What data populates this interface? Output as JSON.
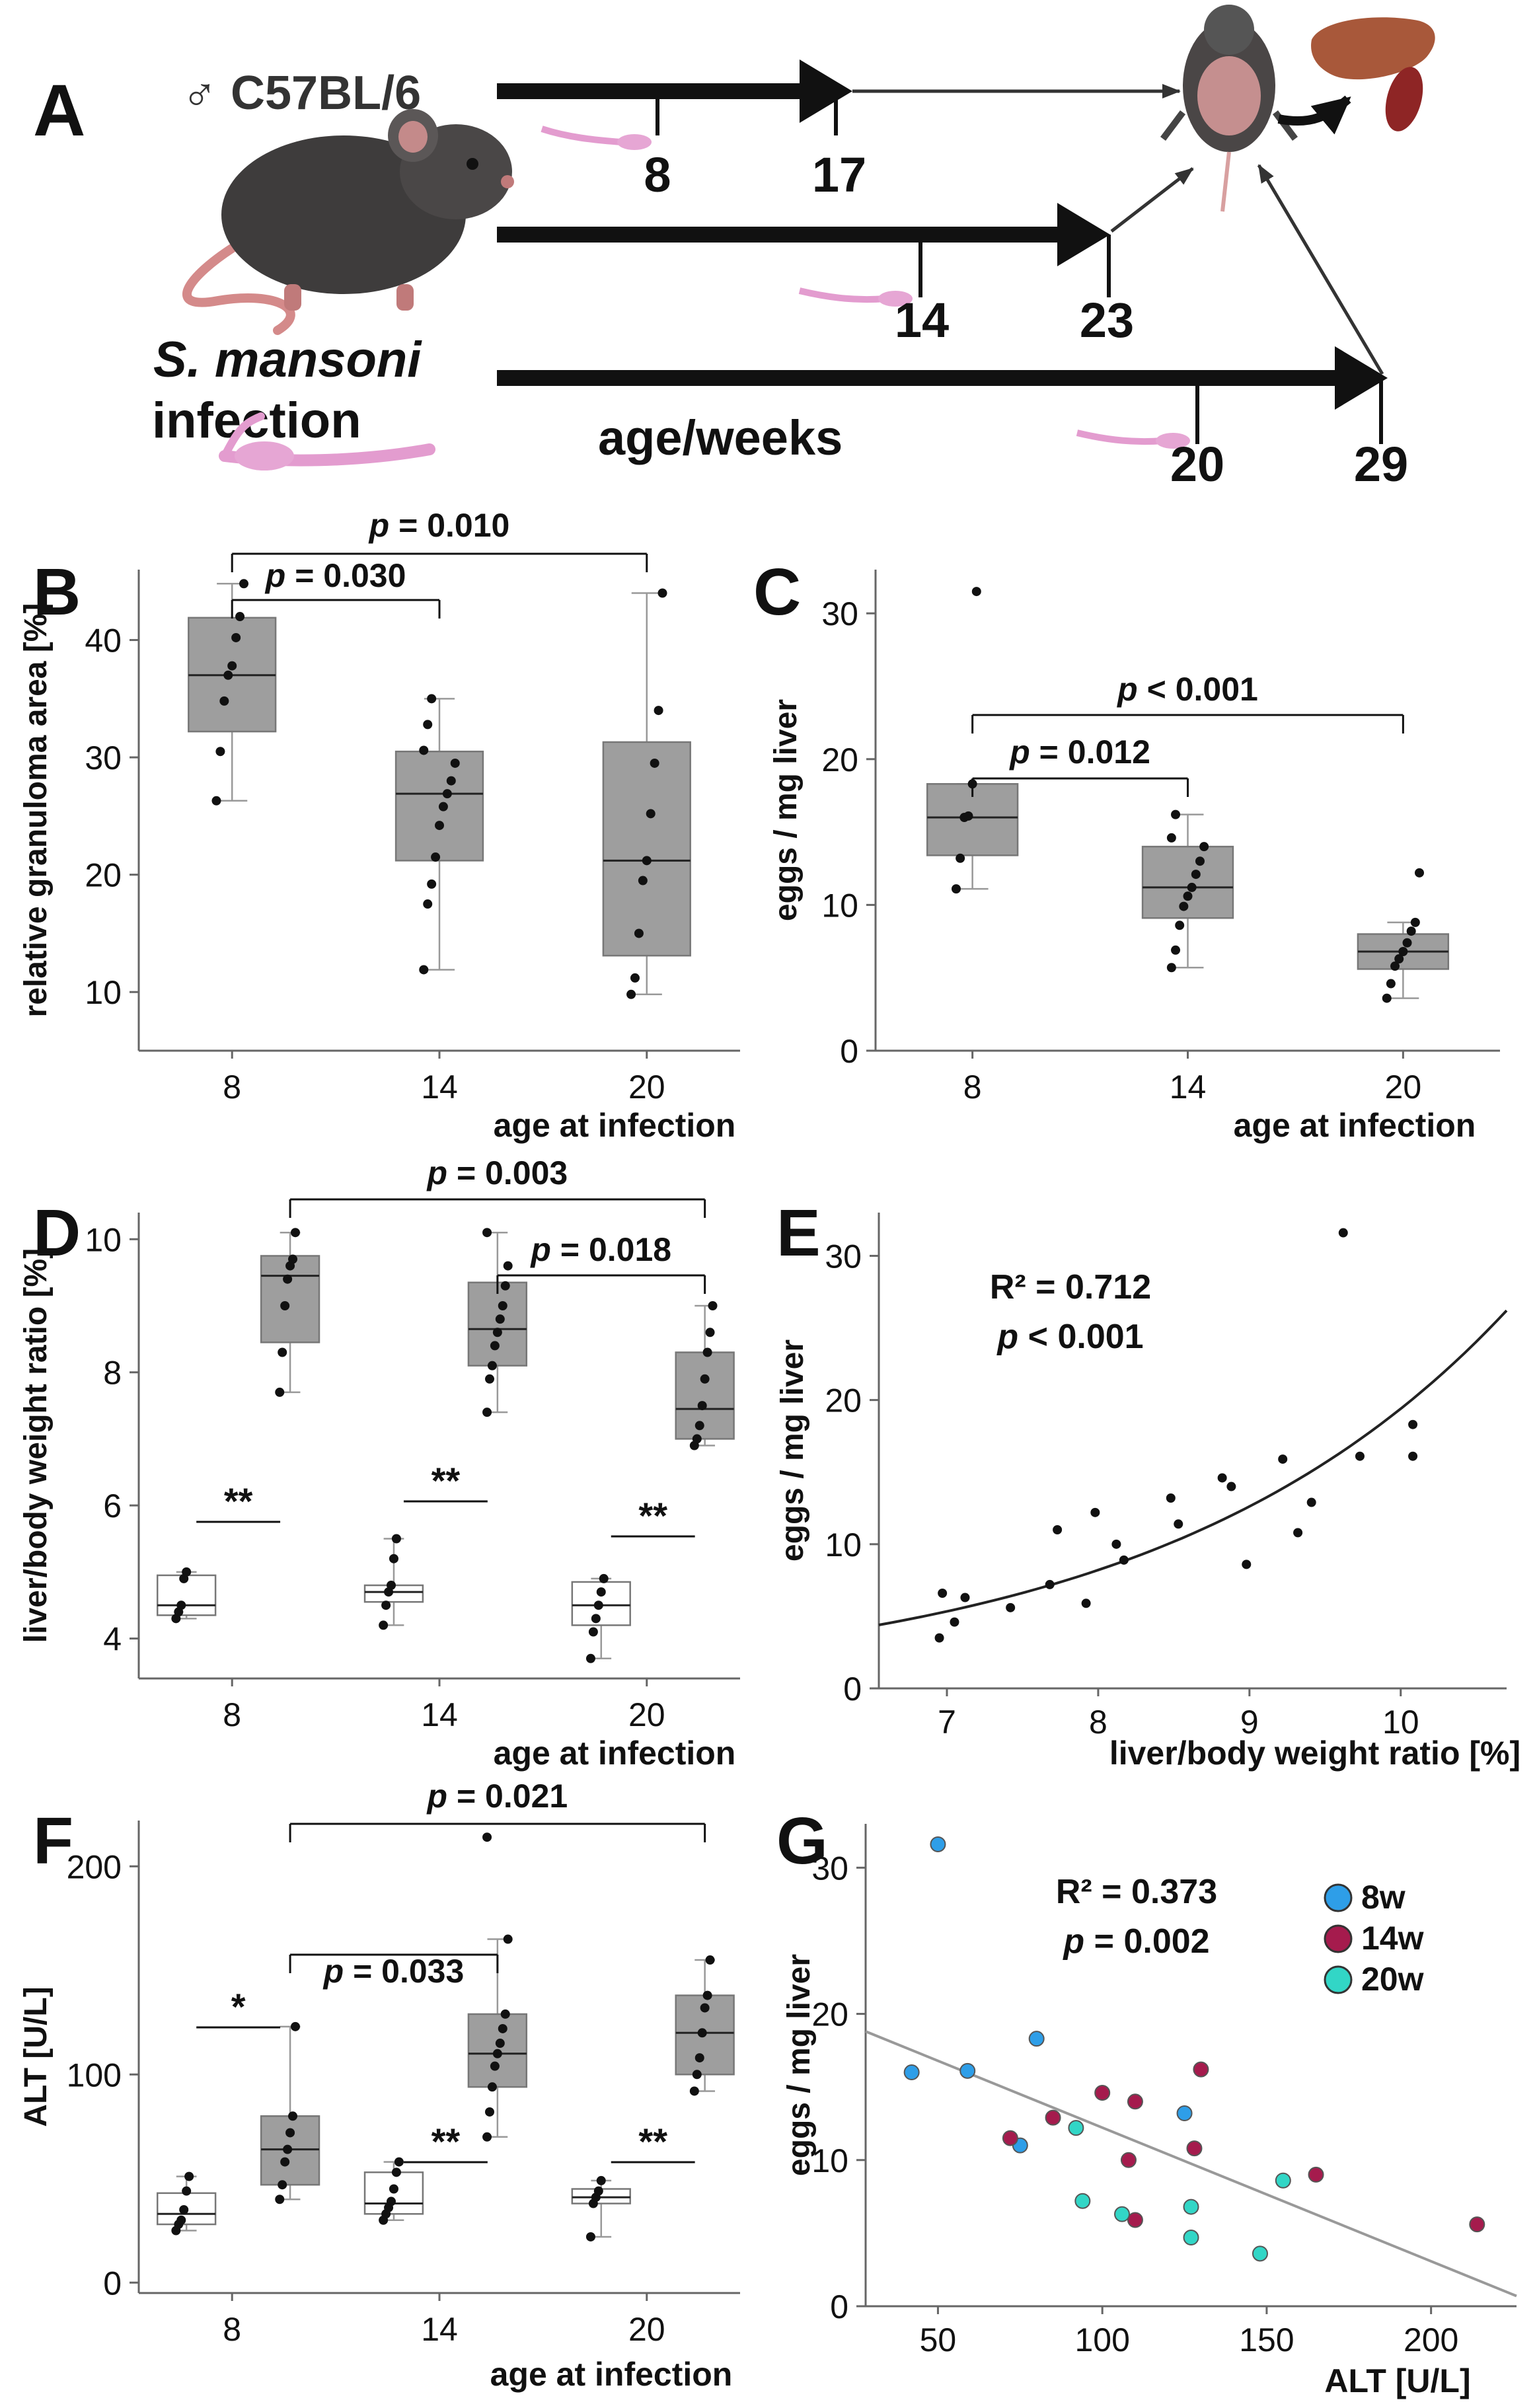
{
  "panel_a": {
    "label": "A",
    "strain": "♂ C57BL/6",
    "infection_line1": "S. mansoni",
    "infection_line2": "infection",
    "age_label": "age/weeks",
    "timelines": [
      {
        "infection": "8",
        "end": "17"
      },
      {
        "infection": "14",
        "end": "23"
      },
      {
        "infection": "20",
        "end": "29"
      }
    ]
  },
  "chart_data": [
    {
      "id": "B",
      "type": "box",
      "ylabel": "relative granuloma area [%]",
      "xlabel": "age at infection",
      "categories": [
        "8",
        "14",
        "20"
      ],
      "ylim": [
        5,
        46
      ],
      "yticks": [
        10,
        20,
        30,
        40
      ],
      "boxes": [
        {
          "cat": "8",
          "min": 26.3,
          "q1": 32.2,
          "median": 37,
          "q3": 41.9,
          "max": 44.8,
          "fill": "#9e9e9e",
          "points": [
            26.3,
            30.5,
            34.8,
            37,
            37.8,
            40.2,
            42,
            44.8
          ]
        },
        {
          "cat": "14",
          "min": 11.9,
          "q1": 21.2,
          "median": 26.9,
          "q3": 30.5,
          "max": 35,
          "fill": "#9e9e9e",
          "points": [
            11.9,
            17.5,
            19.2,
            21.5,
            24.2,
            25.8,
            26.9,
            28,
            29.5,
            30.6,
            32.8,
            35
          ]
        },
        {
          "cat": "20",
          "min": 9.8,
          "q1": 13.1,
          "median": 21.2,
          "q3": 31.3,
          "max": 44,
          "fill": "#9e9e9e",
          "points": [
            9.8,
            11.2,
            15,
            19.5,
            21.2,
            25.2,
            29.5,
            34,
            44
          ]
        }
      ],
      "annotations": [
        {
          "text": "p = 0.010",
          "from": "8",
          "to": "20"
        },
        {
          "text": "p = 0.030",
          "from": "8",
          "to": "14"
        }
      ]
    },
    {
      "id": "C",
      "type": "box",
      "ylabel": "eggs / mg liver",
      "xlabel": "age at infection",
      "categories": [
        "8",
        "14",
        "20"
      ],
      "ylim": [
        0,
        33
      ],
      "yticks": [
        0,
        10,
        20,
        30
      ],
      "boxes": [
        {
          "cat": "8",
          "min": 11.1,
          "q1": 13.4,
          "median": 16,
          "q3": 18.3,
          "max": 18.3,
          "fill": "#9e9e9e",
          "points": [
            11.1,
            13.2,
            16,
            16.1,
            18.3,
            31.5
          ]
        },
        {
          "cat": "14",
          "min": 5.7,
          "q1": 9.1,
          "median": 11.2,
          "q3": 14,
          "max": 16.2,
          "fill": "#9e9e9e",
          "points": [
            5.7,
            6.9,
            8.6,
            9.9,
            10.6,
            11.2,
            12.1,
            13,
            14,
            14.6,
            16.2
          ]
        },
        {
          "cat": "20",
          "min": 3.6,
          "q1": 5.6,
          "median": 6.8,
          "q3": 8,
          "max": 8.8,
          "fill": "#9e9e9e",
          "points": [
            3.6,
            4.6,
            5.8,
            6.3,
            6.8,
            7.4,
            8.2,
            8.8,
            12.2
          ]
        }
      ],
      "annotations": [
        {
          "text": "p < 0.001",
          "from": "8",
          "to": "20"
        },
        {
          "text": "p = 0.012",
          "from": "8",
          "to": "14"
        }
      ]
    },
    {
      "id": "D",
      "type": "box",
      "ylabel": "liver/body weight ratio  [%]",
      "xlabel": "age at infection",
      "categories": [
        "8",
        "14",
        "20"
      ],
      "ylim": [
        3.4,
        10.4
      ],
      "yticks": [
        4,
        6,
        8,
        10
      ],
      "boxes": [
        {
          "cat": "8",
          "pos": -0.22,
          "min": 4.3,
          "q1": 4.35,
          "median": 4.5,
          "q3": 4.95,
          "max": 5,
          "fill": "#ffffff",
          "points": [
            4.3,
            4.4,
            4.5,
            4.9,
            5
          ]
        },
        {
          "cat": "8",
          "pos": 0.28,
          "min": 7.7,
          "q1": 8.45,
          "median": 9.45,
          "q3": 9.75,
          "max": 10.1,
          "fill": "#9e9e9e",
          "points": [
            7.7,
            8.3,
            9,
            9.4,
            9.6,
            9.7,
            10.1
          ]
        },
        {
          "cat": "14",
          "pos": -0.22,
          "min": 4.2,
          "q1": 4.55,
          "median": 4.7,
          "q3": 4.8,
          "max": 5.5,
          "fill": "#ffffff",
          "points": [
            4.2,
            4.5,
            4.7,
            4.8,
            5.2,
            5.5
          ]
        },
        {
          "cat": "14",
          "pos": 0.28,
          "min": 7.4,
          "q1": 8.1,
          "median": 8.65,
          "q3": 9.35,
          "max": 10.1,
          "fill": "#9e9e9e",
          "points": [
            7.4,
            7.9,
            8.1,
            8.4,
            8.6,
            8.8,
            9,
            9.3,
            9.6,
            10.1
          ]
        },
        {
          "cat": "20",
          "pos": -0.22,
          "min": 3.7,
          "q1": 4.2,
          "median": 4.5,
          "q3": 4.85,
          "max": 4.9,
          "fill": "#ffffff",
          "points": [
            3.7,
            4.1,
            4.3,
            4.5,
            4.7,
            4.9
          ]
        },
        {
          "cat": "20",
          "pos": 0.28,
          "min": 6.9,
          "q1": 7,
          "median": 7.45,
          "q3": 8.3,
          "max": 9,
          "fill": "#9e9e9e",
          "points": [
            6.9,
            7,
            7.2,
            7.5,
            7.9,
            8.3,
            8.6,
            9
          ]
        }
      ],
      "annotations": [
        {
          "text": "p = 0.003",
          "from": "8",
          "to": "20"
        },
        {
          "text": "p = 0.018",
          "from": "14",
          "to": "20"
        },
        {
          "text": "**",
          "cat": "8"
        },
        {
          "text": "**",
          "cat": "14"
        },
        {
          "text": "**",
          "cat": "20"
        }
      ]
    },
    {
      "id": "E",
      "type": "scatter",
      "xlabel": "liver/body weight ratio  [%]",
      "ylabel": "eggs / mg liver",
      "xlim": [
        6.55,
        10.7
      ],
      "ylim": [
        0,
        33
      ],
      "xticks": [
        7,
        8,
        9,
        10
      ],
      "yticks": [
        0,
        10,
        20,
        30
      ],
      "stats": {
        "r2": "R² = 0.712",
        "p": "p < 0.001"
      },
      "fit": {
        "type": "exponential",
        "a": 4.4,
        "b": 0.43,
        "x0": 6.55
      },
      "points": [
        {
          "x": 6.95,
          "y": 3.5
        },
        {
          "x": 6.97,
          "y": 6.6
        },
        {
          "x": 7.05,
          "y": 4.6
        },
        {
          "x": 7.12,
          "y": 6.3
        },
        {
          "x": 7.42,
          "y": 5.6
        },
        {
          "x": 7.68,
          "y": 7.2
        },
        {
          "x": 7.73,
          "y": 11
        },
        {
          "x": 7.92,
          "y": 5.9
        },
        {
          "x": 7.98,
          "y": 12.2
        },
        {
          "x": 8.12,
          "y": 10
        },
        {
          "x": 8.17,
          "y": 8.9
        },
        {
          "x": 8.48,
          "y": 13.2
        },
        {
          "x": 8.53,
          "y": 11.4
        },
        {
          "x": 8.82,
          "y": 14.6
        },
        {
          "x": 8.88,
          "y": 14
        },
        {
          "x": 8.98,
          "y": 8.6
        },
        {
          "x": 9.22,
          "y": 15.9
        },
        {
          "x": 9.32,
          "y": 10.8
        },
        {
          "x": 9.41,
          "y": 12.9
        },
        {
          "x": 9.62,
          "y": 31.6
        },
        {
          "x": 9.73,
          "y": 16.1
        },
        {
          "x": 10.08,
          "y": 18.3
        },
        {
          "x": 10.08,
          "y": 16.1
        }
      ]
    },
    {
      "id": "F",
      "type": "box",
      "ylabel": "ALT [U/L]",
      "xlabel": "age at infection",
      "categories": [
        "8",
        "14",
        "20"
      ],
      "ylim": [
        -5,
        222
      ],
      "yticks": [
        0,
        100,
        200
      ],
      "boxes": [
        {
          "cat": "8",
          "pos": -0.22,
          "min": 25,
          "q1": 28,
          "median": 33,
          "q3": 43,
          "max": 51,
          "fill": "#ffffff",
          "points": [
            25,
            28,
            30,
            35,
            44,
            51
          ]
        },
        {
          "cat": "8",
          "pos": 0.28,
          "min": 40,
          "q1": 47,
          "median": 64,
          "q3": 80,
          "max": 123,
          "fill": "#9e9e9e",
          "points": [
            40,
            47,
            58,
            64,
            72,
            80,
            123
          ]
        },
        {
          "cat": "14",
          "pos": -0.22,
          "min": 30,
          "q1": 33,
          "median": 38,
          "q3": 53,
          "max": 58,
          "fill": "#ffffff",
          "points": [
            30,
            33,
            36,
            39,
            45,
            53,
            58
          ]
        },
        {
          "cat": "14",
          "pos": 0.28,
          "min": 70,
          "q1": 94,
          "median": 110,
          "q3": 129,
          "max": 165,
          "fill": "#9e9e9e",
          "points": [
            70,
            82,
            94,
            104,
            110,
            115,
            122,
            129,
            165,
            214
          ]
        },
        {
          "cat": "20",
          "pos": -0.22,
          "min": 22,
          "q1": 38,
          "median": 41,
          "q3": 45,
          "max": 49,
          "fill": "#ffffff",
          "points": [
            22,
            38,
            41,
            44,
            49
          ]
        },
        {
          "cat": "20",
          "pos": 0.28,
          "min": 92,
          "q1": 100,
          "median": 120,
          "q3": 138,
          "max": 155,
          "fill": "#9e9e9e",
          "points": [
            92,
            100,
            108,
            120,
            132,
            138,
            155
          ]
        }
      ],
      "annotations": [
        {
          "text": "p = 0.021",
          "from": "8",
          "to": "20"
        },
        {
          "text": "p = 0.033",
          "from": "8",
          "to": "14"
        },
        {
          "text": "*",
          "cat": "8"
        },
        {
          "text": "**",
          "cat": "14"
        },
        {
          "text": "**",
          "cat": "20"
        }
      ]
    },
    {
      "id": "G",
      "type": "scatter",
      "xlabel": "ALT [U/L]",
      "ylabel": "eggs / mg liver",
      "xlim": [
        28,
        226
      ],
      "ylim": [
        0,
        33
      ],
      "xticks": [
        50,
        100,
        150,
        200
      ],
      "yticks": [
        0,
        10,
        20,
        30
      ],
      "stats": {
        "r2": "R² = 0.373",
        "p": "p = 0.002"
      },
      "fit": {
        "type": "linear",
        "x": [
          28,
          226
        ],
        "y": [
          18.8,
          0.7
        ]
      },
      "legend": [
        {
          "label": "8w",
          "color": "#2e9ee8"
        },
        {
          "label": "14w",
          "color": "#a51b4d"
        },
        {
          "label": "20w",
          "color": "#32d6c6"
        }
      ],
      "points": [
        {
          "x": 50,
          "y": 31.6,
          "g": "8w"
        },
        {
          "x": 42,
          "y": 16,
          "g": "8w"
        },
        {
          "x": 59,
          "y": 16.1,
          "g": "8w"
        },
        {
          "x": 80,
          "y": 18.3,
          "g": "8w"
        },
        {
          "x": 75,
          "y": 11,
          "g": "8w"
        },
        {
          "x": 125,
          "y": 13.2,
          "g": "8w"
        },
        {
          "x": 72,
          "y": 11.5,
          "g": "14w"
        },
        {
          "x": 85,
          "y": 12.9,
          "g": "14w"
        },
        {
          "x": 100,
          "y": 14.6,
          "g": "14w"
        },
        {
          "x": 110,
          "y": 14,
          "g": "14w"
        },
        {
          "x": 108,
          "y": 10,
          "g": "14w"
        },
        {
          "x": 128,
          "y": 10.8,
          "g": "14w"
        },
        {
          "x": 130,
          "y": 16.2,
          "g": "14w"
        },
        {
          "x": 110,
          "y": 5.9,
          "g": "14w"
        },
        {
          "x": 165,
          "y": 9,
          "g": "14w"
        },
        {
          "x": 214,
          "y": 5.6,
          "g": "14w"
        },
        {
          "x": 92,
          "y": 12.2,
          "g": "20w"
        },
        {
          "x": 94,
          "y": 7.2,
          "g": "20w"
        },
        {
          "x": 106,
          "y": 6.3,
          "g": "20w"
        },
        {
          "x": 127,
          "y": 6.8,
          "g": "20w"
        },
        {
          "x": 127,
          "y": 4.7,
          "g": "20w"
        },
        {
          "x": 148,
          "y": 3.6,
          "g": "20w"
        },
        {
          "x": 155,
          "y": 8.6,
          "g": "20w"
        }
      ]
    }
  ]
}
